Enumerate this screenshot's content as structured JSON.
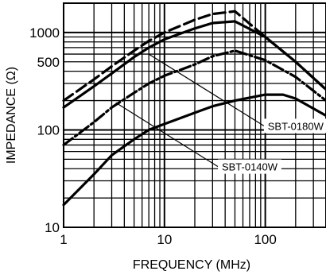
{
  "chart_data": {
    "type": "line",
    "title": "",
    "xlabel": "FREQUENCY (MHz)",
    "ylabel": "IMPEDANCE (Ω)",
    "x_scale": "log",
    "y_scale": "log",
    "xlim": [
      1,
      400
    ],
    "ylim": [
      10,
      2000
    ],
    "x_ticks": [
      {
        "value": 1,
        "label": "1"
      },
      {
        "value": 10,
        "label": "10"
      },
      {
        "value": 100,
        "label": "100"
      }
    ],
    "y_ticks": [
      {
        "value": 10,
        "label": "10"
      },
      {
        "value": 100,
        "label": "100"
      },
      {
        "value": 500,
        "label": "500"
      },
      {
        "value": 1000,
        "label": "1000"
      }
    ],
    "grid": true,
    "annotations": [
      {
        "text": "SBT-0180W",
        "x": 200,
        "y": 110,
        "points_to": [
          7,
          600
        ]
      },
      {
        "text": "SBT-0140W",
        "x": 70,
        "y": 42,
        "points_to": [
          3.3,
          190
        ]
      }
    ],
    "series": [
      {
        "style": "dashed",
        "x": [
          1,
          2,
          3,
          5,
          7,
          10,
          20,
          30,
          50,
          100,
          200,
          400
        ],
        "y": [
          200,
          330,
          450,
          650,
          820,
          1000,
          1350,
          1550,
          1650,
          900,
          500,
          260
        ]
      },
      {
        "style": "solid",
        "x": [
          1,
          2,
          3,
          5,
          7,
          10,
          20,
          30,
          50,
          100,
          200,
          400
        ],
        "y": [
          170,
          280,
          380,
          560,
          700,
          850,
          1100,
          1250,
          1300,
          900,
          500,
          260
        ]
      },
      {
        "style": "dash-dot",
        "x": [
          1,
          2,
          3,
          5,
          7,
          10,
          20,
          30,
          50,
          100,
          200,
          400
        ],
        "y": [
          70,
          120,
          170,
          240,
          300,
          360,
          470,
          570,
          650,
          520,
          350,
          200
        ]
      },
      {
        "style": "solid",
        "x": [
          1,
          2,
          3,
          5,
          7,
          10,
          20,
          30,
          50,
          100,
          150,
          200,
          400
        ],
        "y": [
          17,
          35,
          55,
          80,
          100,
          115,
          150,
          175,
          200,
          230,
          230,
          210,
          140
        ]
      }
    ]
  }
}
